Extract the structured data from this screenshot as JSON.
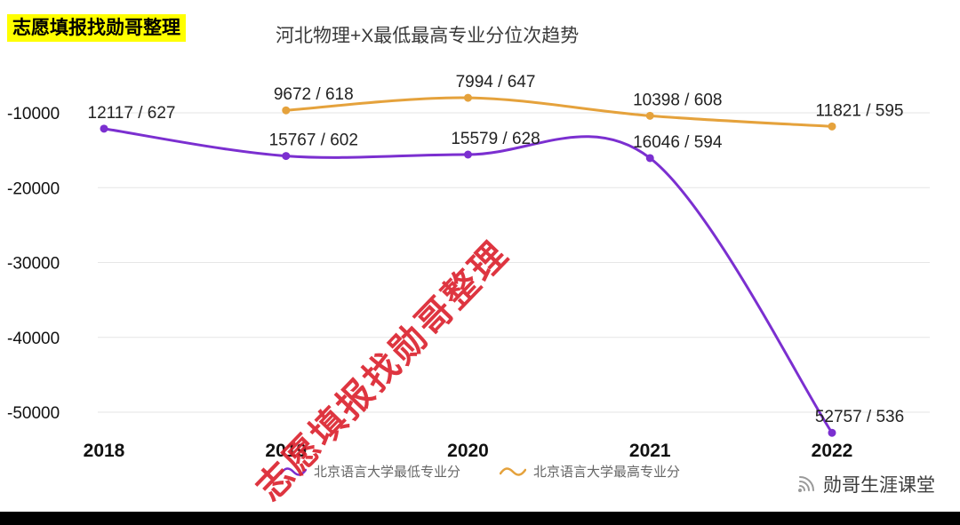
{
  "page": {
    "badge": "志愿填报找勋哥整理",
    "watermark": "志愿填报找勋哥整理",
    "brand": "勋哥生涯课堂"
  },
  "colors": {
    "min_line": "#7b2fd0",
    "max_line": "#e5a23c",
    "badge_bg": "#ffff00",
    "watermark": "#dc2430",
    "grid": "#e6e6e6",
    "bottom_bar": "#000000"
  },
  "chart_data": {
    "type": "line",
    "title": "河北物理+X最低最高专业分位次趋势",
    "x_ticks": [
      "2018",
      "2019",
      "2020",
      "2021",
      "2022"
    ],
    "y_ticks": [
      -10000,
      -20000,
      -30000,
      -40000,
      -50000
    ],
    "ylim": [
      -55000,
      -5000
    ],
    "grid": true,
    "legend_position": "bottom",
    "series": [
      {
        "name": "北京语言大学最低专业分",
        "color": "#7b2fd0",
        "points": [
          {
            "year": 2018,
            "rank": 12117,
            "score": 627,
            "label": "12117 / 627"
          },
          {
            "year": 2019,
            "rank": 15767,
            "score": 602,
            "label": "15767 / 602"
          },
          {
            "year": 2020,
            "rank": 15579,
            "score": 628,
            "label": "15579 / 628"
          },
          {
            "year": 2021,
            "rank": 16046,
            "score": 594,
            "label": "16046 / 594"
          },
          {
            "year": 2022,
            "rank": 52757,
            "score": 536,
            "label": "52757 / 536"
          }
        ]
      },
      {
        "name": "北京语言大学最高专业分",
        "color": "#e5a23c",
        "points": [
          {
            "year": 2019,
            "rank": 9672,
            "score": 618,
            "label": "9672 / 618"
          },
          {
            "year": 2020,
            "rank": 7994,
            "score": 647,
            "label": "7994 / 647"
          },
          {
            "year": 2021,
            "rank": 10398,
            "score": 608,
            "label": "10398 / 608"
          },
          {
            "year": 2022,
            "rank": 11821,
            "score": 595,
            "label": "11821 / 595"
          }
        ]
      }
    ]
  }
}
